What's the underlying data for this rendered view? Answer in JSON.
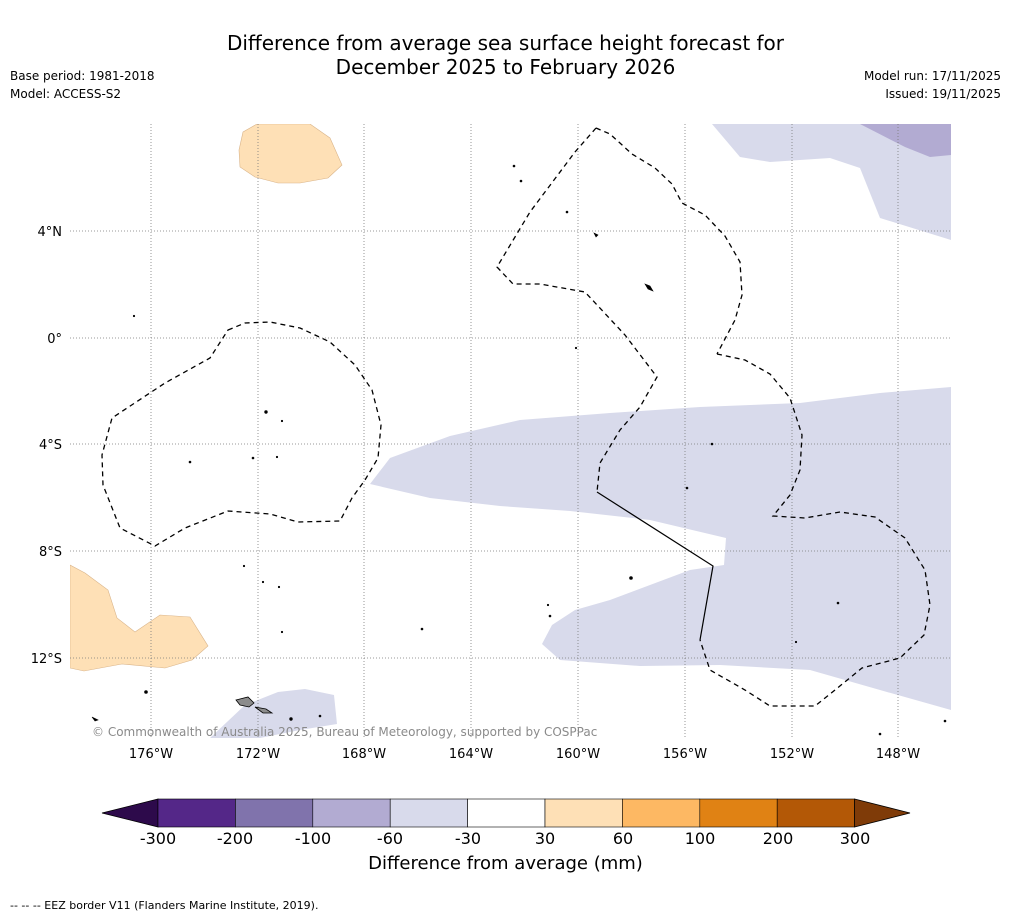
{
  "title": {
    "line1": "Difference from average sea surface height forecast for",
    "line2": "December 2025 to February 2026"
  },
  "meta_left": {
    "base_period": "Base period: 1981-2018",
    "model": "Model: ACCESS-S2"
  },
  "meta_right": {
    "model_run": "Model run: 17/11/2025",
    "issued": "Issued: 19/11/2025"
  },
  "map": {
    "lat_labels": [
      "4°N",
      "0°",
      "4°S",
      "8°S",
      "12°S"
    ],
    "lon_labels": [
      "176°W",
      "172°W",
      "168°W",
      "164°W",
      "160°W",
      "156°W",
      "152°W",
      "148°W"
    ],
    "copyright": "© Commonwealth of Australia 2025, Bureau of Meteorology, supported by COSPPac"
  },
  "legend": {
    "label": "Difference from average (mm)",
    "ticks": [
      "-300",
      "-200",
      "-100",
      "-60",
      "-30",
      "30",
      "60",
      "100",
      "200",
      "300"
    ],
    "colors": {
      "under": "#2d0a4b",
      "bins": [
        "#542788",
        "#8073ac",
        "#b2abd2",
        "#d8daeb",
        "#ffffff",
        "#fee0b6",
        "#fdb863",
        "#e08214",
        "#b35806"
      ],
      "over": "#7f3b08"
    }
  },
  "footnote": "--  --  -- EEZ border V11 (Flanders Marine Institute, 2019)."
}
